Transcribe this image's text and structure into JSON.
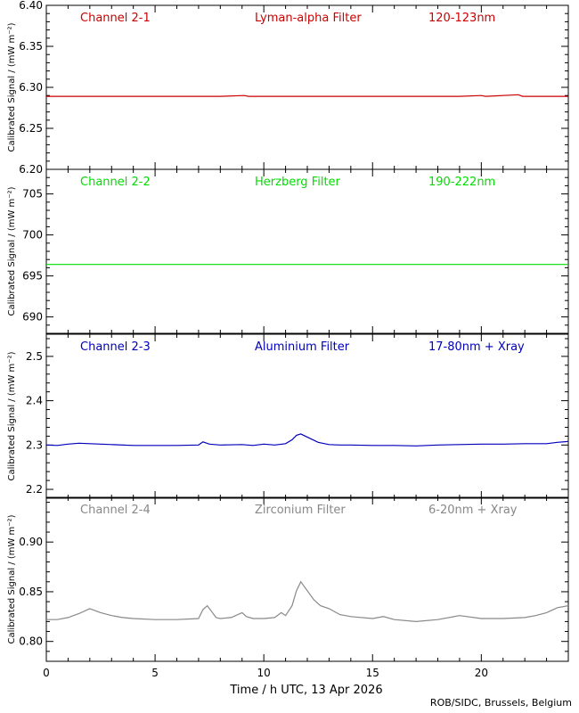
{
  "chart_data": {
    "type": "line",
    "xlabel": "Time / h UTC, 13 Apr 2026",
    "xlim": [
      0,
      24
    ],
    "xticks": [
      "0",
      "5",
      "10",
      "15",
      "20"
    ],
    "credit": "ROB/SIDC, Brussels, Belgium",
    "panels": [
      {
        "channel": "Channel 2-1",
        "filter": "Lyman-alpha Filter",
        "band": "120-123nm",
        "color": "#cc0000",
        "ylabel": "Calibrated Signal / (mW m⁻²)",
        "ylim": [
          6.2,
          6.4
        ],
        "yticks": [
          "6.20",
          "6.25",
          "6.30",
          "6.35",
          "6.40"
        ],
        "series": {
          "x": [
            0,
            2,
            4,
            6,
            8,
            9.1,
            9.3,
            11,
            13,
            15,
            17,
            19,
            20.0,
            20.2,
            21.7,
            21.9,
            24
          ],
          "y": [
            6.289,
            6.289,
            6.289,
            6.289,
            6.289,
            6.29,
            6.289,
            6.289,
            6.289,
            6.289,
            6.289,
            6.289,
            6.29,
            6.289,
            6.291,
            6.289,
            6.289
          ]
        }
      },
      {
        "channel": "Channel 2-2",
        "filter": "Herzberg Filter",
        "band": "190-222nm",
        "color": "#00dd00",
        "ylabel": "Calibrated Signal / (mW m⁻²)",
        "ylim": [
          688,
          708
        ],
        "yticks": [
          "690",
          "695",
          "700",
          "705"
        ],
        "series": {
          "x": [
            0,
            4,
            8,
            12,
            16,
            20,
            24
          ],
          "y": [
            696.4,
            696.4,
            696.4,
            696.4,
            696.4,
            696.4,
            696.4
          ]
        }
      },
      {
        "channel": "Channel 2-3",
        "filter": "Aluminium Filter",
        "band": "17-80nm + Xray",
        "color": "#0000bb",
        "ylabel": "Calibrated Signal / (mW m⁻²)",
        "ylim": [
          2.18,
          2.55
        ],
        "yticks": [
          "2.2",
          "2.3",
          "2.4",
          "2.5"
        ],
        "series": {
          "x": [
            0,
            0.5,
            1,
            1.5,
            2,
            2.5,
            3,
            4,
            5,
            6,
            7,
            7.2,
            7.5,
            8,
            9,
            9.5,
            10,
            10.5,
            11,
            11.3,
            11.5,
            11.7,
            12,
            12.5,
            13,
            13.5,
            14,
            15,
            16,
            17,
            18,
            19,
            20,
            21,
            22,
            23,
            23.5,
            24
          ],
          "y": [
            2.3,
            2.299,
            2.302,
            2.304,
            2.303,
            2.302,
            2.301,
            2.299,
            2.299,
            2.299,
            2.3,
            2.307,
            2.302,
            2.3,
            2.301,
            2.299,
            2.302,
            2.3,
            2.303,
            2.312,
            2.322,
            2.325,
            2.318,
            2.306,
            2.301,
            2.3,
            2.3,
            2.299,
            2.299,
            2.298,
            2.3,
            2.301,
            2.302,
            2.302,
            2.303,
            2.303,
            2.306,
            2.308
          ]
        }
      },
      {
        "channel": "Channel 2-4",
        "filter": "Zirconium Filter",
        "band": "6-20nm + Xray",
        "color": "#888888",
        "ylabel": "Calibrated Signal / (mW m⁻²)",
        "ylim": [
          0.78,
          0.945
        ],
        "yticks": [
          "0.80",
          "0.85",
          "0.90"
        ],
        "series": {
          "x": [
            0,
            0.5,
            1,
            1.5,
            2,
            2.5,
            3,
            3.5,
            4,
            5,
            6,
            7,
            7.2,
            7.4,
            7.6,
            7.8,
            8,
            8.5,
            9,
            9.2,
            9.5,
            10,
            10.5,
            10.8,
            11,
            11.3,
            11.5,
            11.7,
            12,
            12.3,
            12.6,
            13,
            13.5,
            14,
            15,
            15.5,
            16,
            17,
            18,
            19,
            20,
            21,
            22,
            22.5,
            23,
            23.5,
            24
          ],
          "y": [
            0.822,
            0.822,
            0.824,
            0.828,
            0.833,
            0.829,
            0.826,
            0.824,
            0.823,
            0.822,
            0.822,
            0.823,
            0.832,
            0.836,
            0.83,
            0.824,
            0.823,
            0.824,
            0.829,
            0.825,
            0.823,
            0.823,
            0.824,
            0.829,
            0.826,
            0.836,
            0.851,
            0.86,
            0.851,
            0.842,
            0.836,
            0.833,
            0.827,
            0.825,
            0.823,
            0.825,
            0.822,
            0.82,
            0.822,
            0.826,
            0.823,
            0.823,
            0.824,
            0.826,
            0.829,
            0.834,
            0.836
          ]
        }
      }
    ]
  }
}
